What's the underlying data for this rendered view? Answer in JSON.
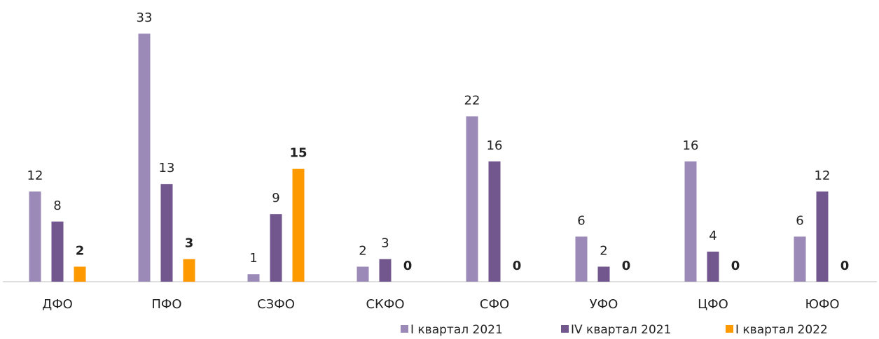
{
  "chart_data": {
    "type": "bar",
    "categories": [
      "ДФО",
      "ПФО",
      "СЗФО",
      "СКФО",
      "СФО",
      "УФО",
      "ЦФО",
      "ЮФО"
    ],
    "series": [
      {
        "name": "I квартал 2021",
        "color": "#9b8ab8",
        "values": [
          12,
          33,
          1,
          2,
          22,
          6,
          16,
          6
        ]
      },
      {
        "name": "IV квартал 2021",
        "color": "#72578f",
        "values": [
          8,
          13,
          9,
          3,
          16,
          2,
          4,
          12
        ]
      },
      {
        "name": "I квартал 2022",
        "color": "#ff9900",
        "values": [
          2,
          3,
          15,
          0,
          0,
          0,
          0,
          0
        ]
      }
    ],
    "ylim": [
      0,
      35
    ]
  }
}
